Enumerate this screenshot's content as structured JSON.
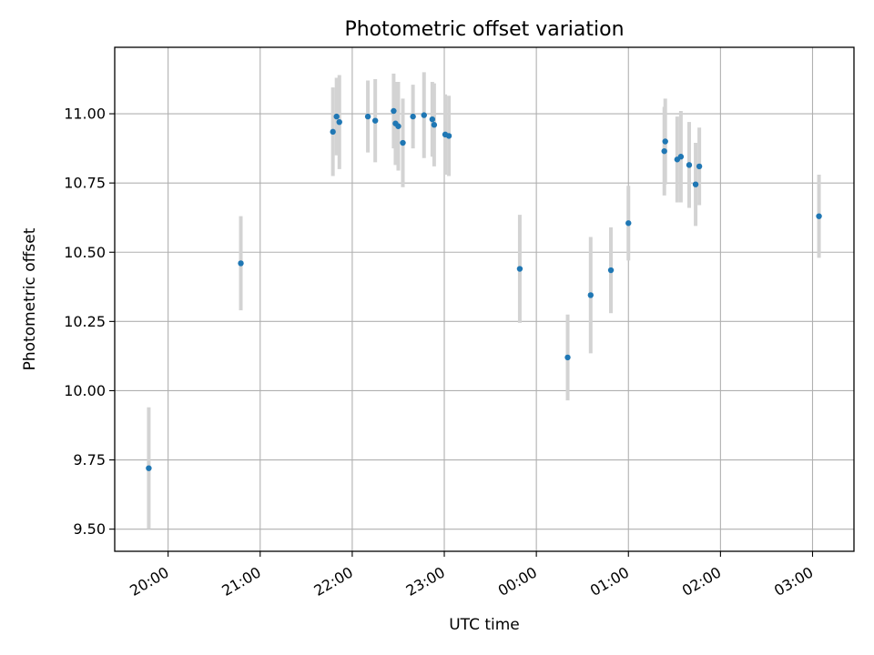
{
  "chart_data": {
    "type": "scatter",
    "title": "Photometric offset variation",
    "xlabel": "UTC time",
    "ylabel": "Photometric offset",
    "grid": true,
    "legend": "none",
    "x_unit": "hours since 20:00 UTC",
    "xlim": [
      -0.58,
      7.45
    ],
    "ylim": [
      9.42,
      11.24
    ],
    "x_ticks": [
      {
        "value": 0,
        "label": "20:00"
      },
      {
        "value": 1,
        "label": "21:00"
      },
      {
        "value": 2,
        "label": "22:00"
      },
      {
        "value": 3,
        "label": "23:00"
      },
      {
        "value": 4,
        "label": "00:00"
      },
      {
        "value": 5,
        "label": "01:00"
      },
      {
        "value": 6,
        "label": "02:00"
      },
      {
        "value": 7,
        "label": "03:00"
      }
    ],
    "y_ticks": [
      {
        "value": 9.5,
        "label": "9.50"
      },
      {
        "value": 9.75,
        "label": "9.75"
      },
      {
        "value": 10.0,
        "label": "10.00"
      },
      {
        "value": 10.25,
        "label": "10.25"
      },
      {
        "value": 10.5,
        "label": "10.50"
      },
      {
        "value": 10.75,
        "label": "10.75"
      },
      {
        "value": 11.0,
        "label": "11.00"
      }
    ],
    "colors": {
      "point": "#1f77b4",
      "errorbar": "#d3d3d3",
      "grid": "#b0b0b0"
    },
    "series": [
      {
        "points": [
          {
            "x": -0.21,
            "y": 9.72,
            "err": 0.22
          },
          {
            "x": 0.79,
            "y": 10.46,
            "err": 0.17
          },
          {
            "x": 1.79,
            "y": 10.935,
            "err": 0.16
          },
          {
            "x": 1.83,
            "y": 10.99,
            "err": 0.14
          },
          {
            "x": 1.86,
            "y": 10.97,
            "err": 0.17
          },
          {
            "x": 2.17,
            "y": 10.99,
            "err": 0.13
          },
          {
            "x": 2.25,
            "y": 10.975,
            "err": 0.15
          },
          {
            "x": 2.45,
            "y": 11.01,
            "err": 0.135
          },
          {
            "x": 2.47,
            "y": 10.965,
            "err": 0.15
          },
          {
            "x": 2.5,
            "y": 10.955,
            "err": 0.16
          },
          {
            "x": 2.55,
            "y": 10.895,
            "err": 0.16
          },
          {
            "x": 2.66,
            "y": 10.99,
            "err": 0.115
          },
          {
            "x": 2.78,
            "y": 10.995,
            "err": 0.155
          },
          {
            "x": 2.87,
            "y": 10.98,
            "err": 0.135
          },
          {
            "x": 2.89,
            "y": 10.96,
            "err": 0.15
          },
          {
            "x": 3.01,
            "y": 10.925,
            "err": 0.145
          },
          {
            "x": 3.05,
            "y": 10.92,
            "err": 0.145
          },
          {
            "x": 3.82,
            "y": 10.44,
            "err": 0.195
          },
          {
            "x": 4.34,
            "y": 10.12,
            "err": 0.155
          },
          {
            "x": 4.59,
            "y": 10.345,
            "err": 0.21
          },
          {
            "x": 4.81,
            "y": 10.435,
            "err": 0.155
          },
          {
            "x": 5.0,
            "y": 10.605,
            "err": 0.135
          },
          {
            "x": 5.39,
            "y": 10.865,
            "err": 0.16
          },
          {
            "x": 5.4,
            "y": 10.9,
            "err": 0.155
          },
          {
            "x": 5.53,
            "y": 10.835,
            "err": 0.155
          },
          {
            "x": 5.57,
            "y": 10.845,
            "err": 0.165
          },
          {
            "x": 5.66,
            "y": 10.815,
            "err": 0.155
          },
          {
            "x": 5.73,
            "y": 10.745,
            "err": 0.15
          },
          {
            "x": 5.77,
            "y": 10.81,
            "err": 0.14
          },
          {
            "x": 7.07,
            "y": 10.63,
            "err": 0.15
          }
        ]
      }
    ]
  }
}
